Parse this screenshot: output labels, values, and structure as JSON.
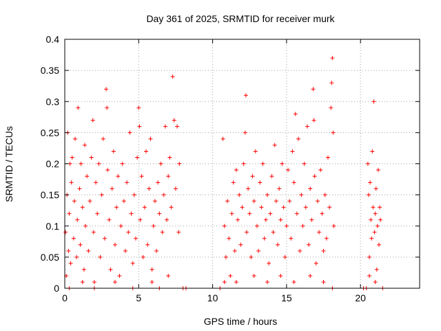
{
  "chart_data": {
    "type": "scatter",
    "title": "Day 361 of 2025, SRMTID for receiver murk",
    "xlabel": "GPS time / hours",
    "ylabel": "SRMTID / TECUs",
    "xlim": [
      0,
      24
    ],
    "ylim": [
      0,
      0.4
    ],
    "grid": true,
    "legend": "none",
    "x_ticks": [
      0,
      5,
      10,
      15,
      20
    ],
    "x_tick_labels": [
      "0",
      "5",
      "10",
      "15",
      "20"
    ],
    "y_ticks": [
      0,
      0.05,
      0.1,
      0.15,
      0.2,
      0.25,
      0.3,
      0.35,
      0.4
    ],
    "y_tick_labels": [
      "0",
      "0.05",
      "0.1",
      "0.15",
      "0.2",
      "0.25",
      "0.3",
      "0.35",
      "0.4"
    ],
    "marker": "+",
    "color": "#ff0000",
    "series": [
      {
        "name": "SRMTID",
        "color": "#ff0000",
        "points": [
          [
            0.05,
            0.09
          ],
          [
            0.1,
            0.02
          ],
          [
            0.15,
            0.15
          ],
          [
            0.2,
            0.25
          ],
          [
            0.25,
            0.06
          ],
          [
            0.3,
            0.12
          ],
          [
            0.35,
            0.2
          ],
          [
            0.4,
            0.04
          ],
          [
            0.45,
            0.17
          ],
          [
            0.5,
            0.21
          ],
          [
            0.6,
            0.08
          ],
          [
            0.65,
            0.14
          ],
          [
            0.7,
            0.24
          ],
          [
            0.8,
            0.05
          ],
          [
            0.85,
            0.11
          ],
          [
            0.9,
            0.29
          ],
          [
            1.0,
            0.16
          ],
          [
            1.05,
            0.07
          ],
          [
            1.1,
            0.2
          ],
          [
            1.2,
            0.13
          ],
          [
            1.3,
            0.03
          ],
          [
            1.35,
            0.23
          ],
          [
            1.4,
            0.1
          ],
          [
            1.5,
            0.18
          ],
          [
            1.6,
            0.06
          ],
          [
            1.7,
            0.14
          ],
          [
            1.8,
            0.21
          ],
          [
            1.9,
            0.27
          ],
          [
            1.95,
            0.09
          ],
          [
            2.0,
            0.01
          ],
          [
            2.1,
            0.17
          ],
          [
            2.2,
            0.12
          ],
          [
            2.3,
            0.2
          ],
          [
            2.4,
            0.05
          ],
          [
            2.5,
            0.15
          ],
          [
            2.6,
            0.24
          ],
          [
            2.7,
            0.08
          ],
          [
            2.8,
            0.32
          ],
          [
            2.85,
            0.29
          ],
          [
            2.9,
            0.19
          ],
          [
            3.0,
            0.11
          ],
          [
            3.1,
            0.03
          ],
          [
            3.2,
            0.16
          ],
          [
            3.3,
            0.22
          ],
          [
            3.4,
            0.07
          ],
          [
            3.5,
            0.13
          ],
          [
            3.6,
            0.18
          ],
          [
            3.7,
            0.02
          ],
          [
            3.8,
            0.1
          ],
          [
            3.9,
            0.2
          ],
          [
            4.0,
            0.14
          ],
          [
            4.1,
            0.06
          ],
          [
            4.2,
            0.17
          ],
          [
            4.3,
            0.09
          ],
          [
            4.4,
            0.25
          ],
          [
            4.5,
            0.12
          ],
          [
            4.6,
            0.04
          ],
          [
            4.7,
            0.15
          ],
          [
            4.8,
            0.08
          ],
          [
            4.9,
            0.21
          ],
          [
            5.0,
            0.29
          ],
          [
            5.05,
            0.26
          ],
          [
            5.1,
            0.11
          ],
          [
            5.2,
            0.18
          ],
          [
            5.3,
            0.05
          ],
          [
            5.4,
            0.13
          ],
          [
            5.5,
            0.22
          ],
          [
            5.6,
            0.07
          ],
          [
            5.7,
            0.16
          ],
          [
            5.8,
            0.24
          ],
          [
            5.9,
            0.03
          ],
          [
            6.0,
            0.1
          ],
          [
            6.1,
            0.14
          ],
          [
            6.2,
            0.06
          ],
          [
            6.3,
            0.17
          ],
          [
            6.4,
            0.12
          ],
          [
            6.5,
            0.2
          ],
          [
            6.6,
            0.09
          ],
          [
            6.7,
            0.15
          ],
          [
            6.8,
            0.26
          ],
          [
            6.9,
            0.11
          ],
          [
            7.0,
            0.18
          ],
          [
            7.1,
            0.21
          ],
          [
            7.2,
            0.13
          ],
          [
            7.3,
            0.34
          ],
          [
            7.4,
            0.27
          ],
          [
            7.5,
            0.16
          ],
          [
            7.6,
            0.26
          ],
          [
            7.7,
            0.09
          ],
          [
            7.75,
            0.2
          ],
          [
            0.3,
            0.0
          ],
          [
            1.2,
            0.01
          ],
          [
            2.0,
            0.0
          ],
          [
            3.4,
            0.01
          ],
          [
            4.6,
            0.0
          ],
          [
            5.9,
            0.01
          ],
          [
            6.4,
            0.0
          ],
          [
            7.0,
            0.02
          ],
          [
            8.0,
            0.0
          ],
          [
            8.2,
            0.0
          ],
          [
            10.5,
            0.0
          ],
          [
            10.7,
            0.24
          ],
          [
            10.8,
            0.1
          ],
          [
            10.9,
            0.05
          ],
          [
            11.0,
            0.14
          ],
          [
            11.1,
            0.08
          ],
          [
            11.2,
            0.02
          ],
          [
            11.3,
            0.12
          ],
          [
            11.4,
            0.17
          ],
          [
            11.5,
            0.06
          ],
          [
            11.6,
            0.19
          ],
          [
            11.7,
            0.11
          ],
          [
            11.8,
            0.15
          ],
          [
            11.9,
            0.07
          ],
          [
            12.0,
            0.13
          ],
          [
            12.1,
            0.2
          ],
          [
            12.2,
            0.25
          ],
          [
            12.25,
            0.31
          ],
          [
            12.3,
            0.09
          ],
          [
            12.4,
            0.16
          ],
          [
            12.5,
            0.12
          ],
          [
            12.6,
            0.05
          ],
          [
            12.7,
            0.18
          ],
          [
            12.8,
            0.14
          ],
          [
            12.9,
            0.22
          ],
          [
            13.0,
            0.1
          ],
          [
            13.1,
            0.06
          ],
          [
            13.2,
            0.17
          ],
          [
            13.3,
            0.13
          ],
          [
            13.4,
            0.2
          ],
          [
            13.5,
            0.08
          ],
          [
            13.6,
            0.11
          ],
          [
            13.7,
            0.15
          ],
          [
            13.8,
            0.04
          ],
          [
            13.9,
            0.12
          ],
          [
            14.0,
            0.18
          ],
          [
            14.1,
            0.09
          ],
          [
            14.2,
            0.23
          ],
          [
            14.3,
            0.14
          ],
          [
            14.4,
            0.07
          ],
          [
            14.5,
            0.16
          ],
          [
            14.6,
            0.11
          ],
          [
            14.7,
            0.2
          ],
          [
            14.8,
            0.13
          ],
          [
            14.9,
            0.05
          ],
          [
            15.0,
            0.1
          ],
          [
            15.1,
            0.19
          ],
          [
            15.2,
            0.14
          ],
          [
            15.3,
            0.08
          ],
          [
            15.4,
            0.22
          ],
          [
            15.5,
            0.17
          ],
          [
            15.6,
            0.28
          ],
          [
            15.7,
            0.12
          ],
          [
            15.8,
            0.24
          ],
          [
            15.9,
            0.06
          ],
          [
            16.0,
            0.15
          ],
          [
            16.1,
            0.1
          ],
          [
            16.2,
            0.2
          ],
          [
            16.3,
            0.13
          ],
          [
            16.4,
            0.26
          ],
          [
            16.5,
            0.07
          ],
          [
            16.6,
            0.16
          ],
          [
            16.7,
            0.11
          ],
          [
            16.8,
            0.32
          ],
          [
            16.85,
            0.27
          ],
          [
            16.9,
            0.18
          ],
          [
            17.0,
            0.04
          ],
          [
            17.1,
            0.14
          ],
          [
            17.2,
            0.09
          ],
          [
            17.3,
            0.19
          ],
          [
            17.4,
            0.12
          ],
          [
            17.5,
            0.06
          ],
          [
            17.6,
            0.15
          ],
          [
            17.7,
            0.08
          ],
          [
            17.8,
            0.21
          ],
          [
            17.9,
            0.13
          ],
          [
            18.0,
            0.29
          ],
          [
            18.05,
            0.33
          ],
          [
            18.1,
            0.37
          ],
          [
            18.15,
            0.25
          ],
          [
            18.2,
            0.1
          ],
          [
            10.8,
            0.01
          ],
          [
            11.6,
            0.01
          ],
          [
            12.8,
            0.02
          ],
          [
            13.7,
            0.01
          ],
          [
            14.6,
            0.02
          ],
          [
            15.5,
            0.01
          ],
          [
            16.6,
            0.02
          ],
          [
            17.5,
            0.01
          ],
          [
            18.1,
            0.0
          ],
          [
            20.2,
            0.0
          ],
          [
            20.4,
            0.0
          ],
          [
            21.5,
            0.0
          ],
          [
            20.5,
            0.2
          ],
          [
            20.55,
            0.15
          ],
          [
            20.6,
            0.05
          ],
          [
            20.65,
            0.17
          ],
          [
            20.7,
            0.11
          ],
          [
            20.75,
            0.08
          ],
          [
            20.8,
            0.22
          ],
          [
            20.85,
            0.13
          ],
          [
            20.9,
            0.3
          ],
          [
            20.95,
            0.09
          ],
          [
            21.0,
            0.12
          ],
          [
            21.05,
            0.16
          ],
          [
            21.1,
            0.03
          ],
          [
            21.15,
            0.1
          ],
          [
            21.2,
            0.19
          ],
          [
            21.25,
            0.07
          ],
          [
            21.3,
            0.13
          ],
          [
            21.35,
            0.11
          ],
          [
            20.6,
            0.02
          ],
          [
            21.0,
            0.01
          ]
        ]
      }
    ]
  }
}
